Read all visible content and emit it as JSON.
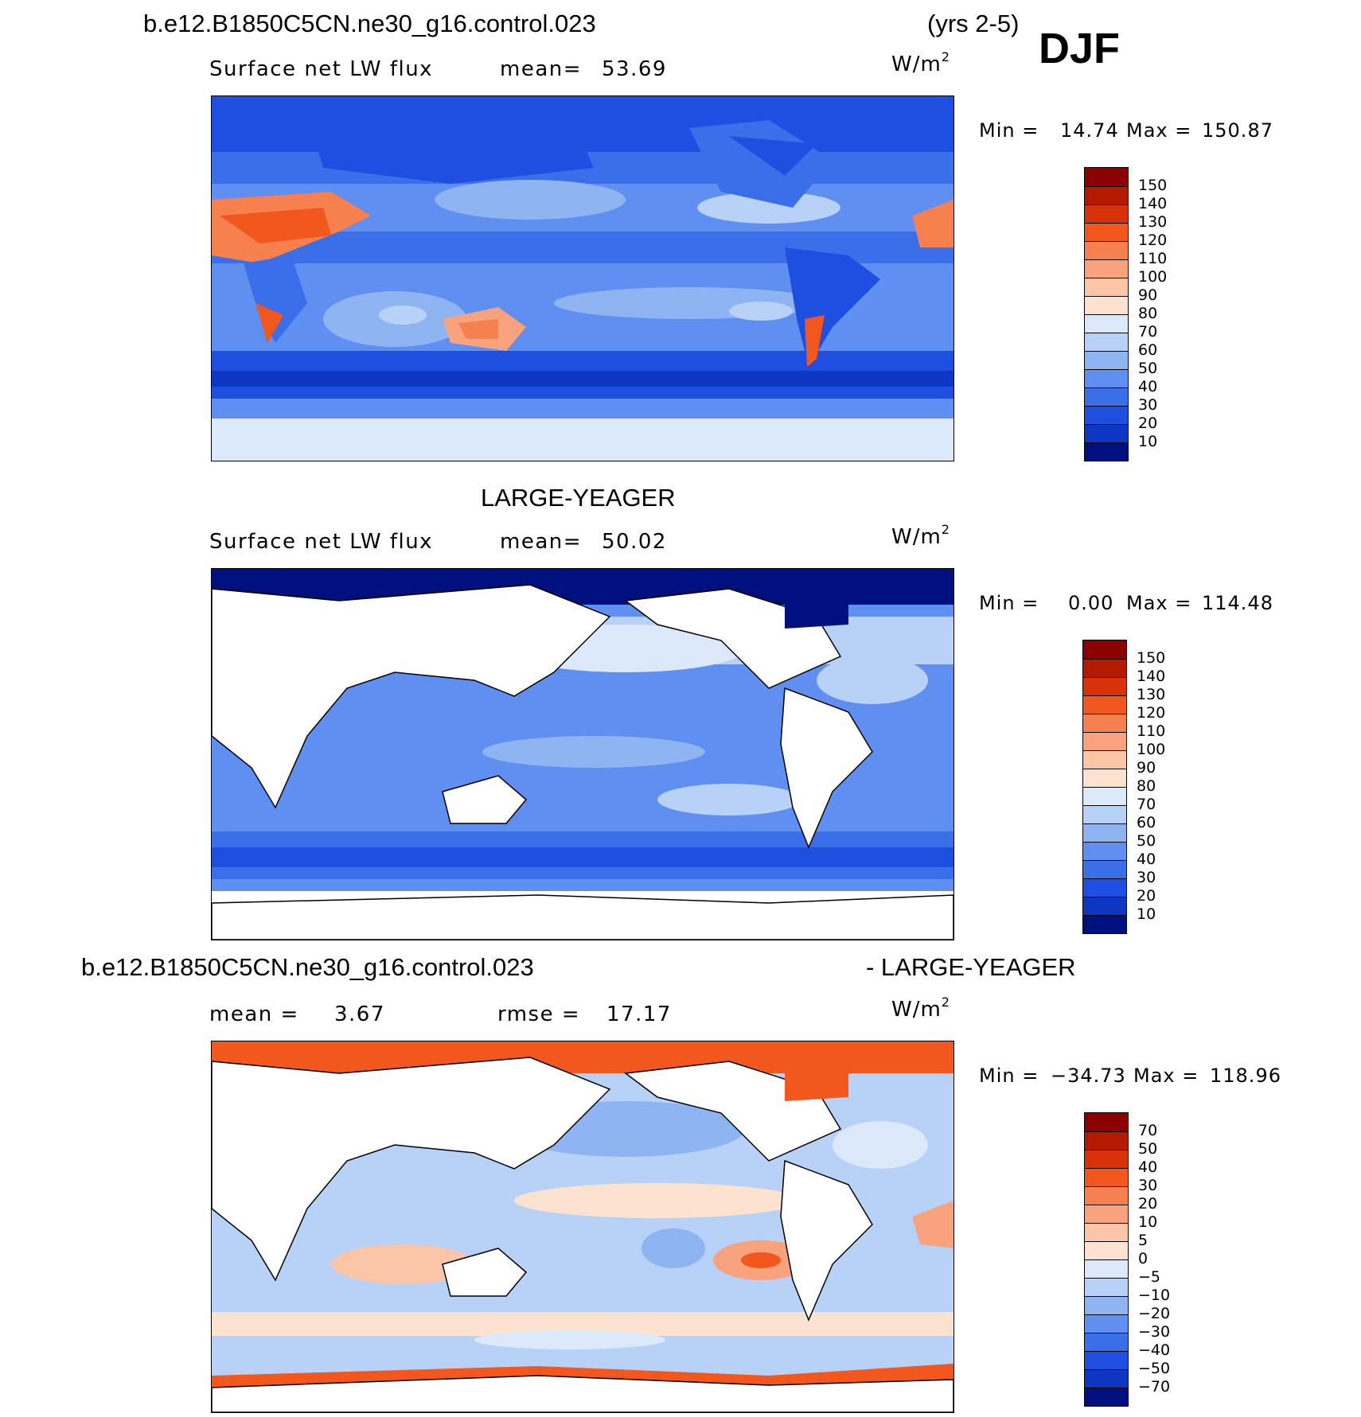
{
  "header": {
    "case_name": "b.e12.B1850C5CN.ne30_g16.control.023",
    "years": "(yrs 2-5)",
    "season": "DJF"
  },
  "panels": [
    {
      "title": "",
      "variable": "Surface net LW flux",
      "stat_label": "mean=",
      "stat_value": "53.69",
      "units": "W/m",
      "units_exp": "2",
      "min_label": "Min =",
      "min_value": "14.74",
      "max_label": "Max =",
      "max_value": "150.87",
      "colorbar_labels": [
        "150",
        "140",
        "130",
        "120",
        "110",
        "100",
        "90",
        "80",
        "70",
        "60",
        "50",
        "40",
        "30",
        "20",
        "10"
      ]
    },
    {
      "title": "LARGE-YEAGER",
      "variable": "Surface net LW flux",
      "stat_label": "mean=",
      "stat_value": "50.02",
      "units": "W/m",
      "units_exp": "2",
      "min_label": "Min =",
      "min_value": "0.00",
      "max_label": "Max =",
      "max_value": "114.48",
      "colorbar_labels": [
        "150",
        "140",
        "130",
        "120",
        "110",
        "100",
        "90",
        "80",
        "70",
        "60",
        "50",
        "40",
        "30",
        "20",
        "10"
      ]
    },
    {
      "title_left": "b.e12.B1850C5CN.ne30_g16.control.023",
      "title_right": "- LARGE-YEAGER",
      "stat_label": "mean =",
      "stat_value": "3.67",
      "rmse_label": "rmse =",
      "rmse_value": "17.17",
      "units": "W/m",
      "units_exp": "2",
      "min_label": "Min =",
      "min_value": "−34.73",
      "max_label": "Max =",
      "max_value": "118.96",
      "colorbar_labels": [
        "70",
        "50",
        "40",
        "30",
        "20",
        "10",
        "5",
        "0",
        "−5",
        "−10",
        "−20",
        "−30",
        "−40",
        "−50",
        "−70"
      ]
    }
  ],
  "colors": {
    "abs_scale": [
      "#8b0000",
      "#b31a00",
      "#d8320a",
      "#f2571e",
      "#f7804f",
      "#f9a37e",
      "#fbc6a8",
      "#fde3cf",
      "#dbe9fa",
      "#b8d2f7",
      "#8fb4f2",
      "#5f8ff0",
      "#3b6fea",
      "#1f4fe0",
      "#0d36c2",
      "#00117f"
    ],
    "diff_scale": [
      "#8b0000",
      "#b31a00",
      "#d8320a",
      "#f2571e",
      "#f7804f",
      "#f9a37e",
      "#fbc6a8",
      "#fde3cf",
      "#dbe9fa",
      "#b8d2f7",
      "#8fb4f2",
      "#5f8ff0",
      "#3b6fea",
      "#1f4fe0",
      "#0d36c2",
      "#00117f"
    ]
  }
}
